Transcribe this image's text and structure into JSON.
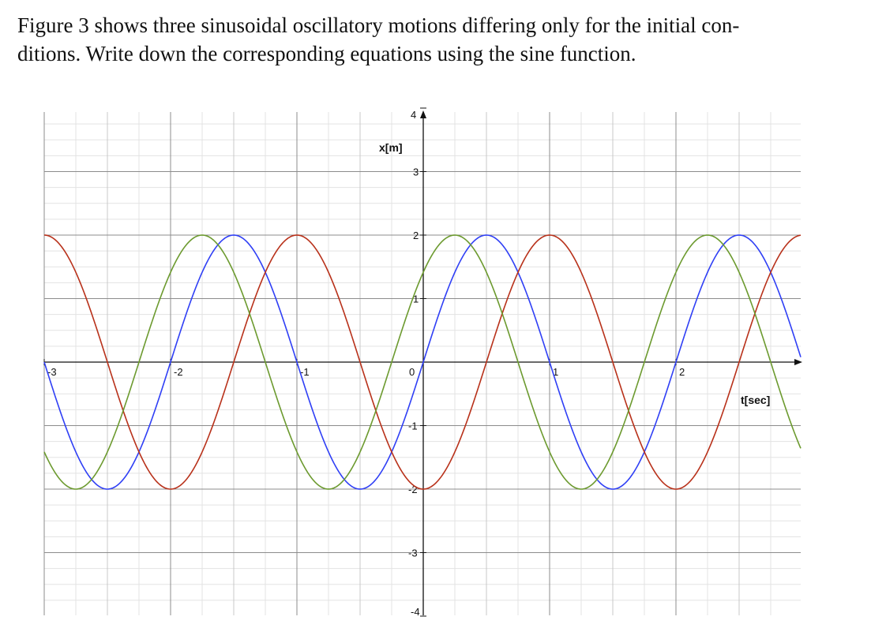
{
  "problem": {
    "line1": "Figure 3 shows three sinusoidal oscillatory motions differing only for the initial con-",
    "line2": "ditions. Write down the corresponding equations using the sine function."
  },
  "chart_data": {
    "type": "line",
    "xlabel": "t[sec]",
    "ylabel": "x[m]",
    "xlim": [
      -3.05,
      3.0
    ],
    "ylim": [
      -4,
      4
    ],
    "x_ticks": [
      "-3",
      "-2",
      "-1",
      "0",
      "1",
      "2"
    ],
    "y_ticks": [
      "4",
      "3",
      "2",
      "1",
      "-1",
      "-2",
      "-3",
      "-4"
    ],
    "grid": true,
    "series": [
      {
        "color": "#2f3ff5",
        "amplitude": 2,
        "period": 2,
        "phase": 0,
        "equation_form": "x(t) = 2 sin(πt)",
        "x": [
          -3.0,
          -2.5,
          -2.0,
          -1.5,
          -1.0,
          -0.5,
          0.0,
          0.5,
          1.0,
          1.5,
          2.0,
          2.5,
          3.0
        ],
        "y": [
          0,
          -2,
          0,
          2,
          0,
          -2,
          0,
          2,
          0,
          -2,
          0,
          2,
          0
        ]
      },
      {
        "color": "#b8311a",
        "amplitude": 2,
        "period": 2,
        "phase": -1.5708,
        "equation_form": "x(t) = 2 sin(πt − π/2)",
        "x": [
          -3.0,
          -2.5,
          -2.0,
          -1.5,
          -1.0,
          -0.5,
          0.0,
          0.5,
          1.0,
          1.5,
          2.0,
          2.5,
          3.0
        ],
        "y": [
          2,
          0,
          -2,
          0,
          2,
          0,
          -2,
          0,
          2,
          0,
          -2,
          0,
          2
        ]
      },
      {
        "color": "#6c9a2f",
        "amplitude": 2,
        "period": 2,
        "phase": 0.7854,
        "equation_form": "x(t) = 2 sin(πt + π/4)",
        "x": [
          -2.75,
          -2.25,
          -1.75,
          -1.25,
          -0.75,
          -0.25,
          0.0,
          0.25,
          0.75,
          1.25,
          1.75,
          2.25,
          2.75
        ],
        "y": [
          -2,
          0,
          2,
          0,
          -2,
          0,
          1.41,
          2,
          0,
          -2,
          0,
          2,
          0
        ]
      }
    ]
  }
}
